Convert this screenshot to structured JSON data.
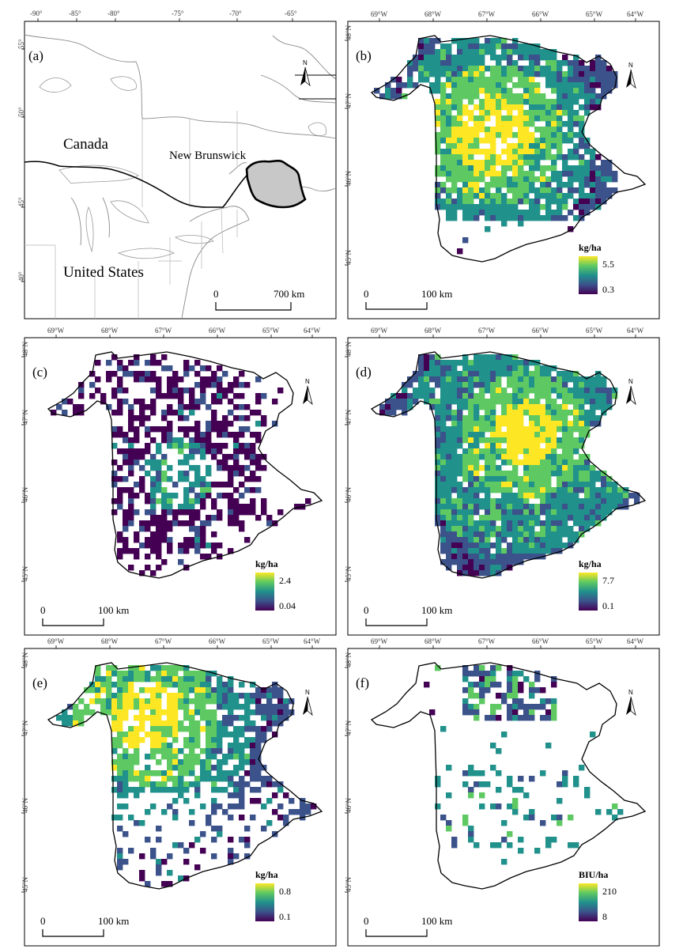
{
  "colors": {
    "viridis": [
      "#440154",
      "#3b528b",
      "#21918c",
      "#5ec962",
      "#fde725"
    ],
    "province_fill": "#c8c8c8",
    "boundary": "#000000"
  },
  "icons": {
    "north_arrow": "north-arrow-icon"
  },
  "panel_a": {
    "label": "(a)",
    "lon_ticks": [
      "-90°",
      "-85°",
      "-80°",
      "-75°",
      "-70°",
      "-65°"
    ],
    "lat_ticks": [
      "55°",
      "50°",
      "45°",
      "40°"
    ],
    "labels": {
      "canada": "Canada",
      "new_brunswick": "New Brunswick",
      "united_states": "United States"
    },
    "scale": {
      "start": "0",
      "end": "700 km"
    },
    "north": "N"
  },
  "nb_lon_ticks": [
    "69°W",
    "68°W",
    "67°W",
    "66°W",
    "65°W",
    "64°W"
  ],
  "nb_lat_ticks": [
    "48°N",
    "47°N",
    "46°N",
    "45°N"
  ],
  "panels": [
    {
      "id": "b",
      "label": "(b)",
      "unit": "kg/ha",
      "max": "5.5",
      "min": "0.3",
      "scale_start": "0",
      "scale_end": "100 km",
      "north": "N"
    },
    {
      "id": "c",
      "label": "(c)",
      "unit": "kg/ha",
      "max": "2.4",
      "min": "0.04",
      "scale_start": "0",
      "scale_end": "100 km",
      "north": "N"
    },
    {
      "id": "d",
      "label": "(d)",
      "unit": "kg/ha",
      "max": "7.7",
      "min": "0.1",
      "scale_start": "0",
      "scale_end": "100 km",
      "north": "N"
    },
    {
      "id": "e",
      "label": "(e)",
      "unit": "kg/ha",
      "max": "0.8",
      "min": "0.1",
      "scale_start": "0",
      "scale_end": "100 km",
      "north": "N"
    },
    {
      "id": "f",
      "label": "(f)",
      "unit": "BIU/ha",
      "max": "210",
      "min": "8",
      "scale_start": "0",
      "scale_end": "100 km",
      "north": "N"
    }
  ]
}
